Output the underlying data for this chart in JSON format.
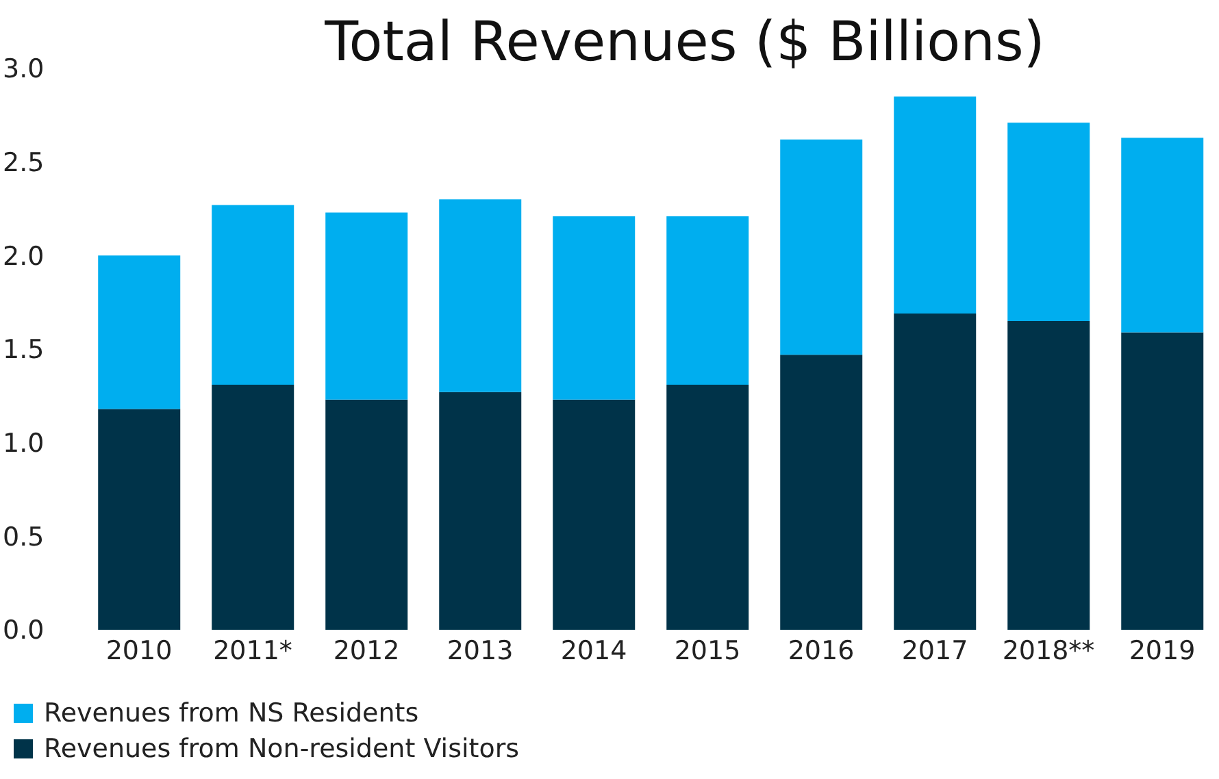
{
  "chart_data": {
    "type": "bar",
    "title": "Total Revenues ($ Billions)",
    "categories": [
      "2010",
      "2011*",
      "2012",
      "2013",
      "2014",
      "2015",
      "2016",
      "2017",
      "2018**",
      "2019"
    ],
    "series": [
      {
        "name": "Revenues from Non-resident Visitors",
        "color": "#003349",
        "values": [
          1.18,
          1.31,
          1.23,
          1.27,
          1.23,
          1.31,
          1.47,
          1.69,
          1.65,
          1.59
        ]
      },
      {
        "name": "Revenues from NS Residents",
        "color": "#00aeef",
        "values": [
          0.82,
          0.96,
          1.0,
          1.03,
          0.98,
          0.9,
          1.15,
          1.16,
          1.06,
          1.04
        ]
      }
    ],
    "stacked": true,
    "ylim": [
      0,
      3
    ],
    "yticks": [
      {
        "value": 0,
        "label": "0.0"
      },
      {
        "value": 0.5,
        "label": "0.5"
      },
      {
        "value": 1,
        "label": "1.0"
      },
      {
        "value": 1.5,
        "label": "1.5"
      },
      {
        "value": 2,
        "label": "2.0"
      },
      {
        "value": 2.5,
        "label": "2.5"
      },
      {
        "value": 3,
        "label": "3.0"
      }
    ],
    "grid": false,
    "legend": "bottom left"
  }
}
